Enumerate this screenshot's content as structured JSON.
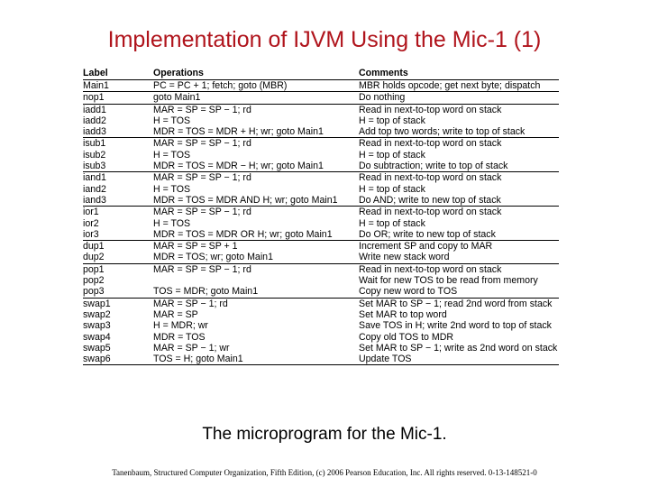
{
  "title": "Implementation of IJVM Using the Mic-1  (1)",
  "table": {
    "headers": [
      "Label",
      "Operations",
      "Comments"
    ],
    "groups": [
      [
        [
          "Main1",
          "PC = PC + 1; fetch; goto (MBR)",
          "MBR holds opcode; get next byte; dispatch"
        ]
      ],
      [
        [
          "nop1",
          "goto Main1",
          "Do nothing"
        ]
      ],
      [
        [
          "iadd1",
          "MAR = SP = SP − 1; rd",
          "Read in next-to-top word on stack"
        ],
        [
          "iadd2",
          "H = TOS",
          "H = top of stack"
        ],
        [
          "iadd3",
          "MDR = TOS = MDR + H; wr; goto Main1",
          "Add top two words; write to top of stack"
        ]
      ],
      [
        [
          "isub1",
          "MAR = SP = SP − 1; rd",
          "Read in next-to-top word on stack"
        ],
        [
          "isub2",
          "H = TOS",
          "H = top of stack"
        ],
        [
          "isub3",
          "MDR = TOS = MDR − H; wr; goto Main1",
          "Do subtraction; write to top of stack"
        ]
      ],
      [
        [
          "iand1",
          "MAR = SP = SP − 1; rd",
          "Read in next-to-top word on stack"
        ],
        [
          "iand2",
          "H = TOS",
          "H = top of stack"
        ],
        [
          "iand3",
          "MDR = TOS = MDR AND H; wr; goto Main1",
          "Do AND; write to new top of stack"
        ]
      ],
      [
        [
          "ior1",
          "MAR = SP = SP − 1; rd",
          "Read in next-to-top word on stack"
        ],
        [
          "ior2",
          "H = TOS",
          "H = top of stack"
        ],
        [
          "ior3",
          "MDR = TOS = MDR OR H; wr; goto Main1",
          "Do OR; write to new top of stack"
        ]
      ],
      [
        [
          "dup1",
          "MAR = SP = SP + 1",
          "Increment SP and copy to MAR"
        ],
        [
          "dup2",
          "MDR = TOS; wr; goto Main1",
          "Write new stack word"
        ]
      ],
      [
        [
          "pop1",
          "MAR = SP = SP − 1; rd",
          "Read in next-to-top word on stack"
        ],
        [
          "pop2",
          "",
          "Wait for new TOS to be read from memory"
        ],
        [
          "pop3",
          "TOS = MDR; goto Main1",
          "Copy new word to TOS"
        ]
      ],
      [
        [
          "swap1",
          "MAR = SP − 1; rd",
          "Set MAR to SP − 1; read 2nd word from stack"
        ],
        [
          "swap2",
          "MAR = SP",
          "Set MAR to top word"
        ],
        [
          "swap3",
          "H = MDR; wr",
          "Save TOS in H; write 2nd word to top of stack"
        ],
        [
          "swap4",
          "MDR = TOS",
          "Copy old TOS to MDR"
        ],
        [
          "swap5",
          "MAR = SP − 1; wr",
          "Set MAR to SP − 1; write as 2nd word on stack"
        ],
        [
          "swap6",
          "TOS = H; goto Main1",
          "Update TOS"
        ]
      ]
    ]
  },
  "caption": "The microprogram for the Mic-1.",
  "footer": "Tanenbaum, Structured Computer Organization, Fifth Edition, (c) 2006 Pearson Education, Inc. All rights reserved. 0-13-148521-0"
}
